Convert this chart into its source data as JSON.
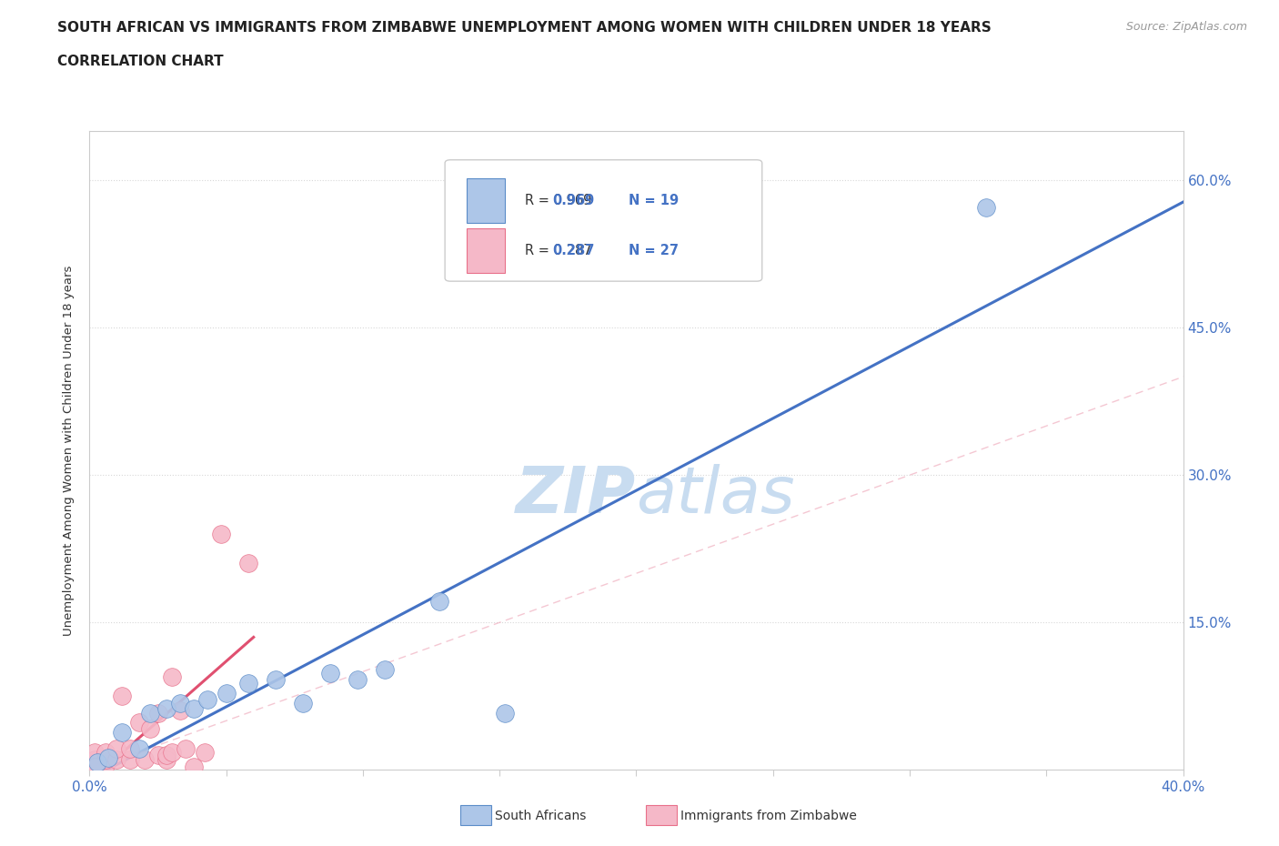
{
  "title_line1": "SOUTH AFRICAN VS IMMIGRANTS FROM ZIMBABWE UNEMPLOYMENT AMONG WOMEN WITH CHILDREN UNDER 18 YEARS",
  "title_line2": "CORRELATION CHART",
  "source": "Source: ZipAtlas.com",
  "ylabel": "Unemployment Among Women with Children Under 18 years",
  "xlim": [
    0.0,
    0.4
  ],
  "ylim": [
    0.0,
    0.65
  ],
  "xtick_positions": [
    0.0,
    0.05,
    0.1,
    0.15,
    0.2,
    0.25,
    0.3,
    0.35,
    0.4
  ],
  "xtick_labels": [
    "0.0%",
    "",
    "",
    "",
    "",
    "",
    "",
    "",
    "40.0%"
  ],
  "ytick_positions": [
    0.0,
    0.15,
    0.3,
    0.45,
    0.6
  ],
  "ytick_labels_right": [
    "",
    "15.0%",
    "30.0%",
    "45.0%",
    "60.0%"
  ],
  "color_sa": "#adc6e8",
  "color_sa_edge": "#5b8cc8",
  "color_sa_line": "#4472c4",
  "color_zim": "#f5b8c8",
  "color_zim_edge": "#e8708a",
  "color_zim_line": "#e05070",
  "color_diagonal": "#f0b0c0",
  "color_title": "#222222",
  "color_r_value": "#4472c4",
  "color_n_value": "#4472c4",
  "color_tick": "#4472c4",
  "watermark_color": "#c8dcf0",
  "grid_color": "#d8d8d8",
  "background_color": "#ffffff",
  "sa_x": [
    0.003,
    0.007,
    0.012,
    0.018,
    0.022,
    0.028,
    0.033,
    0.038,
    0.043,
    0.05,
    0.058,
    0.068,
    0.078,
    0.088,
    0.098,
    0.108,
    0.128,
    0.152,
    0.328
  ],
  "sa_y": [
    0.008,
    0.012,
    0.038,
    0.022,
    0.058,
    0.062,
    0.068,
    0.062,
    0.072,
    0.078,
    0.088,
    0.092,
    0.068,
    0.098,
    0.092,
    0.102,
    0.172,
    0.058,
    0.572
  ],
  "zim_x": [
    0.002,
    0.002,
    0.002,
    0.006,
    0.006,
    0.006,
    0.01,
    0.01,
    0.012,
    0.015,
    0.015,
    0.018,
    0.02,
    0.022,
    0.025,
    0.025,
    0.028,
    0.028,
    0.03,
    0.03,
    0.033,
    0.035,
    0.038,
    0.042,
    0.048,
    0.058,
    0.002
  ],
  "zim_y": [
    0.005,
    0.01,
    0.018,
    0.005,
    0.01,
    0.018,
    0.01,
    0.022,
    0.075,
    0.01,
    0.022,
    0.048,
    0.01,
    0.042,
    0.015,
    0.058,
    0.01,
    0.015,
    0.095,
    0.018,
    0.06,
    0.022,
    0.003,
    0.018,
    0.24,
    0.21,
    0.003
  ]
}
